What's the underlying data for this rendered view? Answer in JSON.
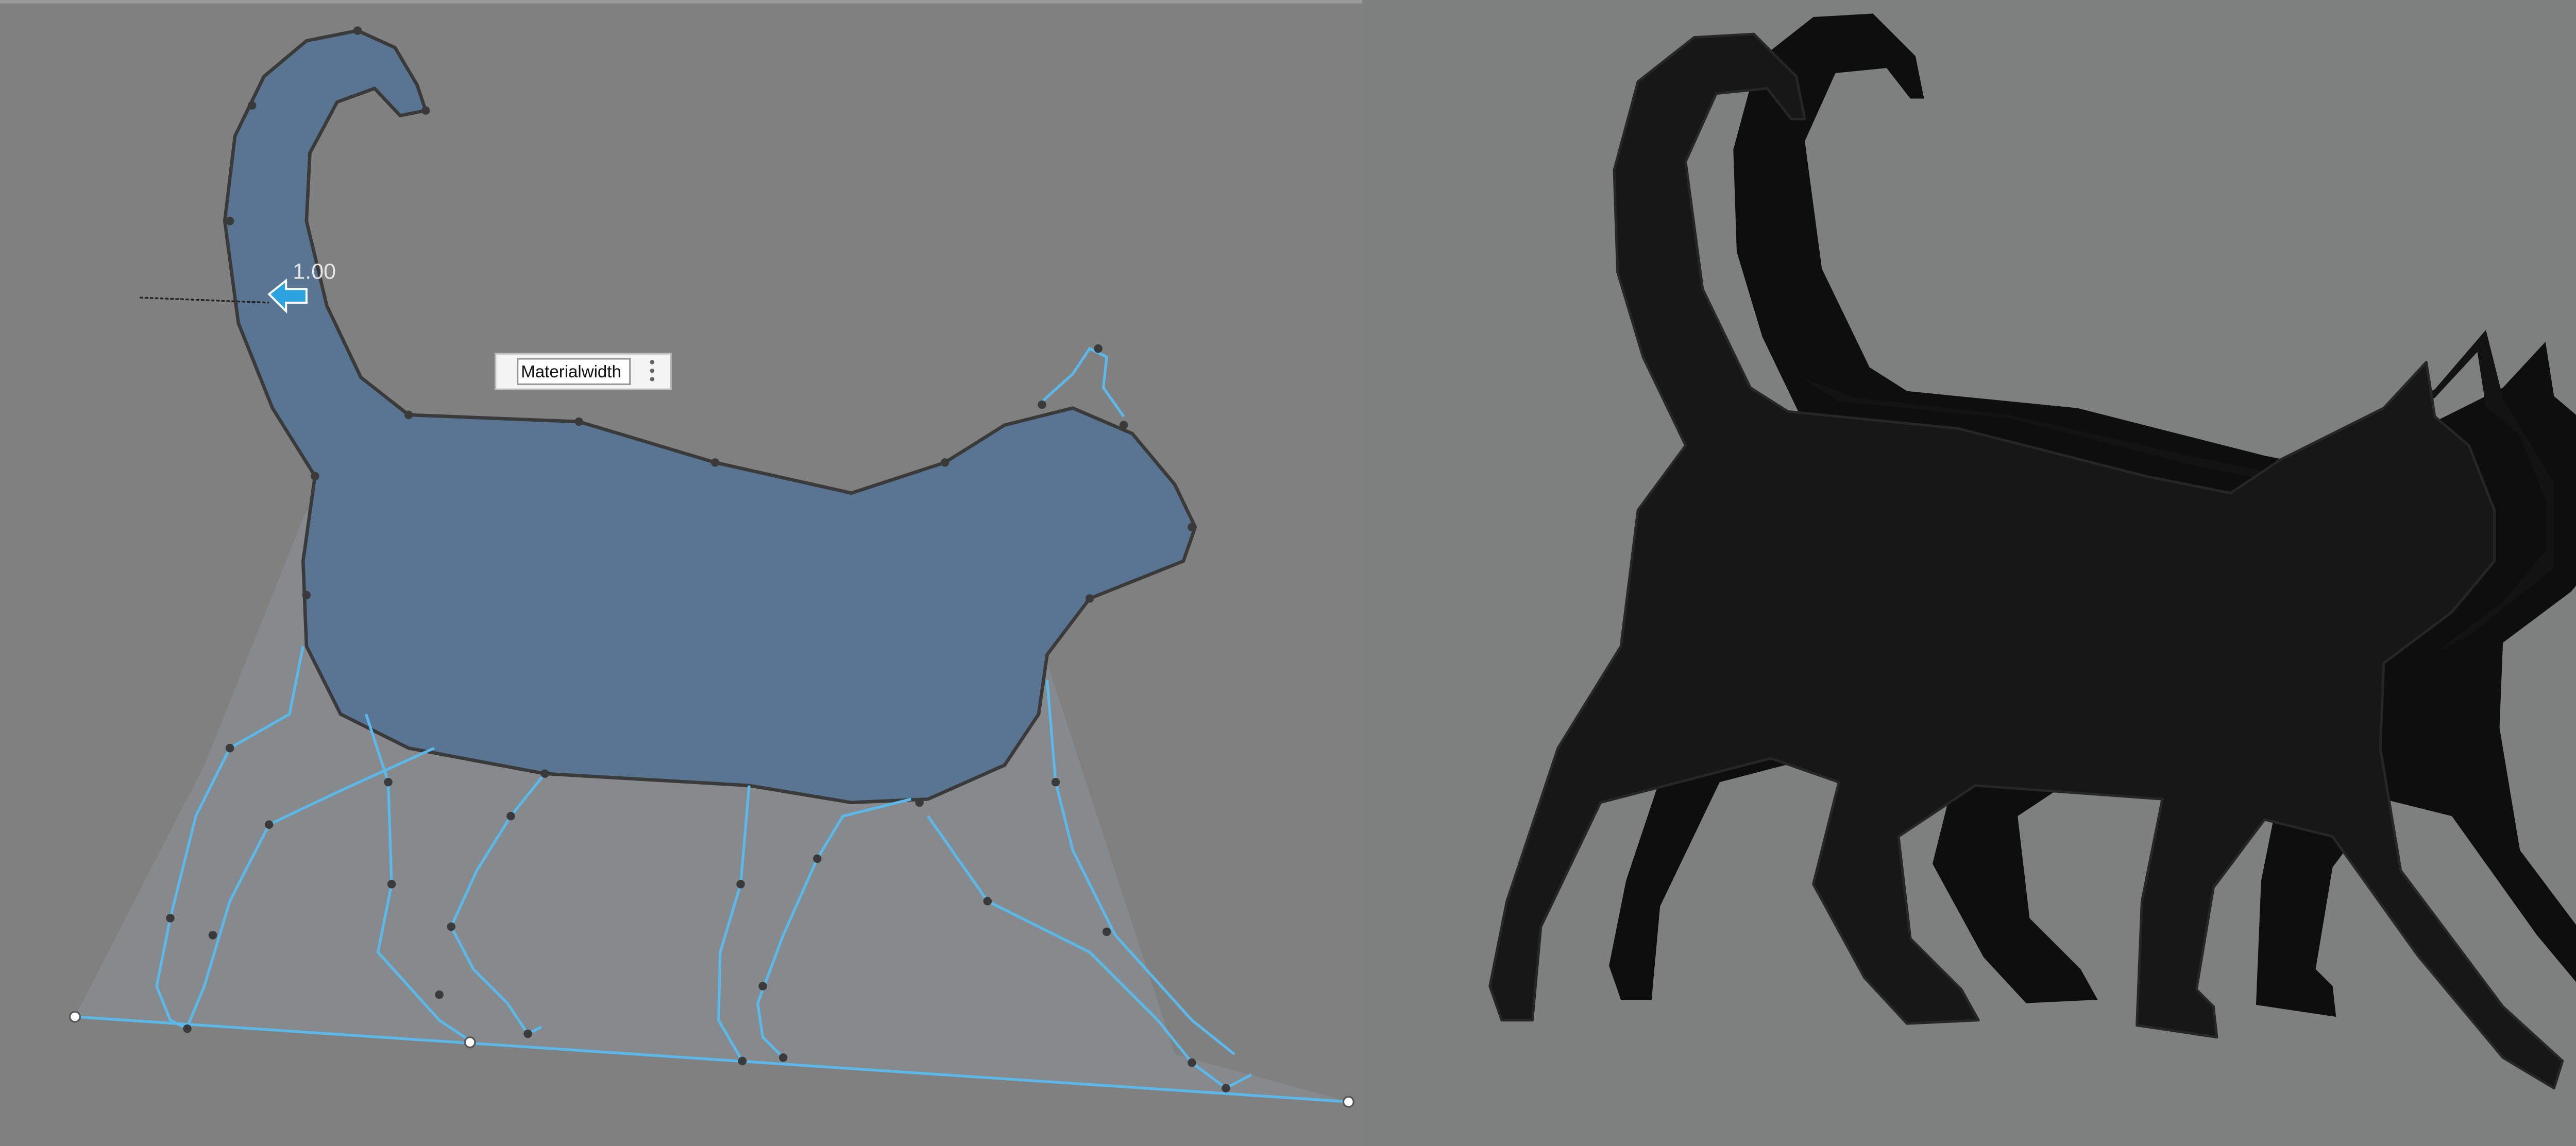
{
  "dimension_value": "1.00",
  "input_label": "Materialwidth"
}
